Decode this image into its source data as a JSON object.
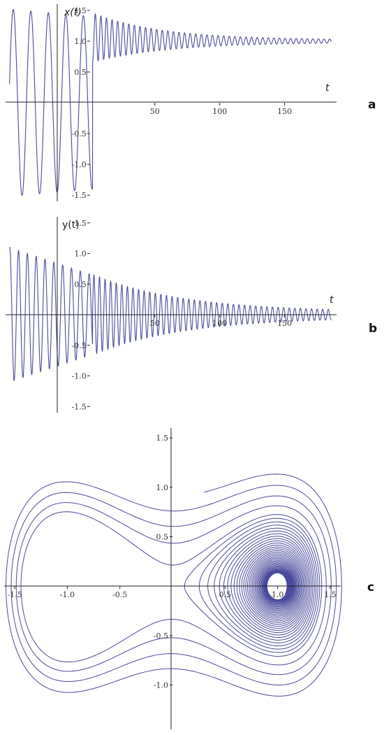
{
  "panel_labels": [
    "a",
    "b",
    "c"
  ],
  "chart_data": [
    {
      "panel": "a",
      "type": "line",
      "ylabel": "x(t)",
      "xlabel": "t",
      "xlim": [
        -65,
        190
      ],
      "ylim": [
        -1.6,
        1.6
      ],
      "x_ticks": [
        "50",
        "100",
        "150"
      ],
      "y_ticks": [
        "1.5",
        "1.0",
        "0.5",
        "-0.5",
        "-1.0",
        "-1.5"
      ],
      "grid": false,
      "line_color": "#4a4a9c",
      "series": [
        {
          "description_points": [
            {
              "x": -62,
              "y": 0.3
            },
            {
              "x": -58,
              "y": 1.5
            },
            {
              "x": -54,
              "y": -1.55
            },
            {
              "x": -45,
              "y": 1.5
            },
            {
              "x": -38,
              "y": -1.5
            },
            {
              "x": -32,
              "y": 1.4
            },
            {
              "x": -25,
              "y": -1.55
            },
            {
              "x": -18,
              "y": 1.45
            },
            {
              "x": -10,
              "y": -1.4
            },
            {
              "x": -3,
              "y": 1.35
            },
            {
              "x": 2,
              "y": 0.2
            },
            {
              "x": 5,
              "y": 1.4
            },
            {
              "x": 50,
              "y": 1.28
            },
            {
              "x": 100,
              "y": 1.12
            },
            {
              "x": 150,
              "y": 1.06
            },
            {
              "x": 186,
              "y": 1.0
            }
          ]
        }
      ]
    },
    {
      "panel": "b",
      "type": "line",
      "ylabel": "y(t)",
      "xlabel": "t",
      "xlim": [
        -65,
        190
      ],
      "ylim": [
        -1.6,
        1.6
      ],
      "x_ticks": [
        "50",
        "100",
        "150"
      ],
      "y_ticks": [
        "1.5",
        "1.0",
        "0.5",
        "-0.5",
        "-1.0",
        "-1.5"
      ],
      "grid": false,
      "line_color": "#4a4a9c",
      "series": [
        {
          "description_points": [
            {
              "x": -62,
              "y": 1.1
            },
            {
              "x": -58,
              "y": -1.05
            },
            {
              "x": -50,
              "y": 0.95
            },
            {
              "x": -40,
              "y": -0.95
            },
            {
              "x": -30,
              "y": 0.85
            },
            {
              "x": -15,
              "y": -0.75
            },
            {
              "x": 5,
              "y": 0.65
            },
            {
              "x": 50,
              "y": 0.45
            },
            {
              "x": 100,
              "y": 0.25
            },
            {
              "x": 150,
              "y": 0.1
            },
            {
              "x": 186,
              "y": 0.05
            }
          ]
        }
      ]
    },
    {
      "panel": "c",
      "type": "line",
      "xlabel": "",
      "ylabel": "",
      "xlim": [
        -1.6,
        1.6
      ],
      "ylim": [
        -1.45,
        1.6
      ],
      "x_ticks": [
        "-1.5",
        "-1.0",
        "-0.5",
        "0.5",
        "1.0",
        "1.5"
      ],
      "y_ticks": [
        "1.5",
        "1.0",
        "0.5",
        "-0.5",
        "-1.0"
      ],
      "grid": false,
      "line_color": "#4a4a9c",
      "series": [
        {
          "start_point": {
            "x": 0.3,
            "y": 0.95
          },
          "end_point": {
            "x": 1.0,
            "y": 0.0
          }
        }
      ]
    }
  ]
}
